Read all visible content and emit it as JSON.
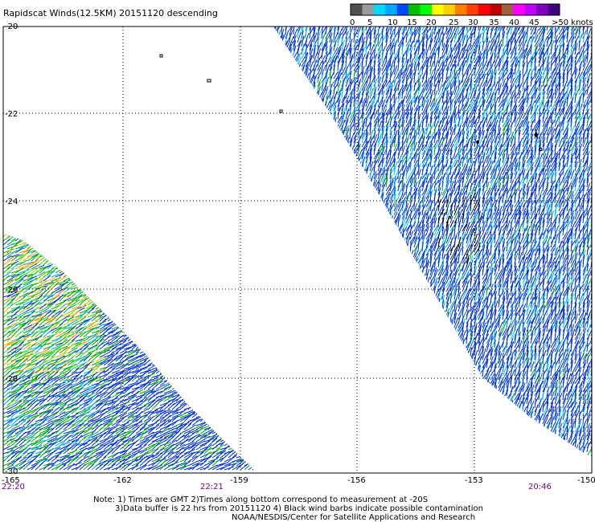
{
  "title": "Rapidscat Winds(12.5KM) 20151120 descending",
  "legend": {
    "labels": [
      "0",
      "5",
      "10",
      "15",
      "20",
      "25",
      "30",
      "35",
      "40",
      "45",
      ">50 knots"
    ],
    "colors": [
      "#505050",
      "#9a9a9a",
      "#00d8ff",
      "#00a8ff",
      "#0048ff",
      "#00c000",
      "#00ff00",
      "#ffff00",
      "#ffd000",
      "#ff8000",
      "#ff4000",
      "#ff0000",
      "#c00000",
      "#a06040",
      "#ff00ff",
      "#c000ff",
      "#8000c0",
      "#400080"
    ]
  },
  "axes": {
    "lat_labels": [
      "-20",
      "-22",
      "-24",
      "-26",
      "-28",
      "-30"
    ],
    "lon_labels": [
      "-165",
      "-162",
      "-159",
      "-156",
      "-153",
      "-150"
    ],
    "lat_range": [
      -30,
      -20
    ],
    "lon_range": [
      -165,
      -150
    ]
  },
  "times": [
    "22:20",
    "22:21",
    "20:46"
  ],
  "notes": [
    "Note: 1) Times are GMT 2)Times along bottom correspond to measurement at -20S",
    "3)Data buffer is 22 hrs from 20151120 4) Black wind barbs indicate possible contamination",
    "NOAA/NESDIS/Center for Satellite Applications and Research"
  ]
}
